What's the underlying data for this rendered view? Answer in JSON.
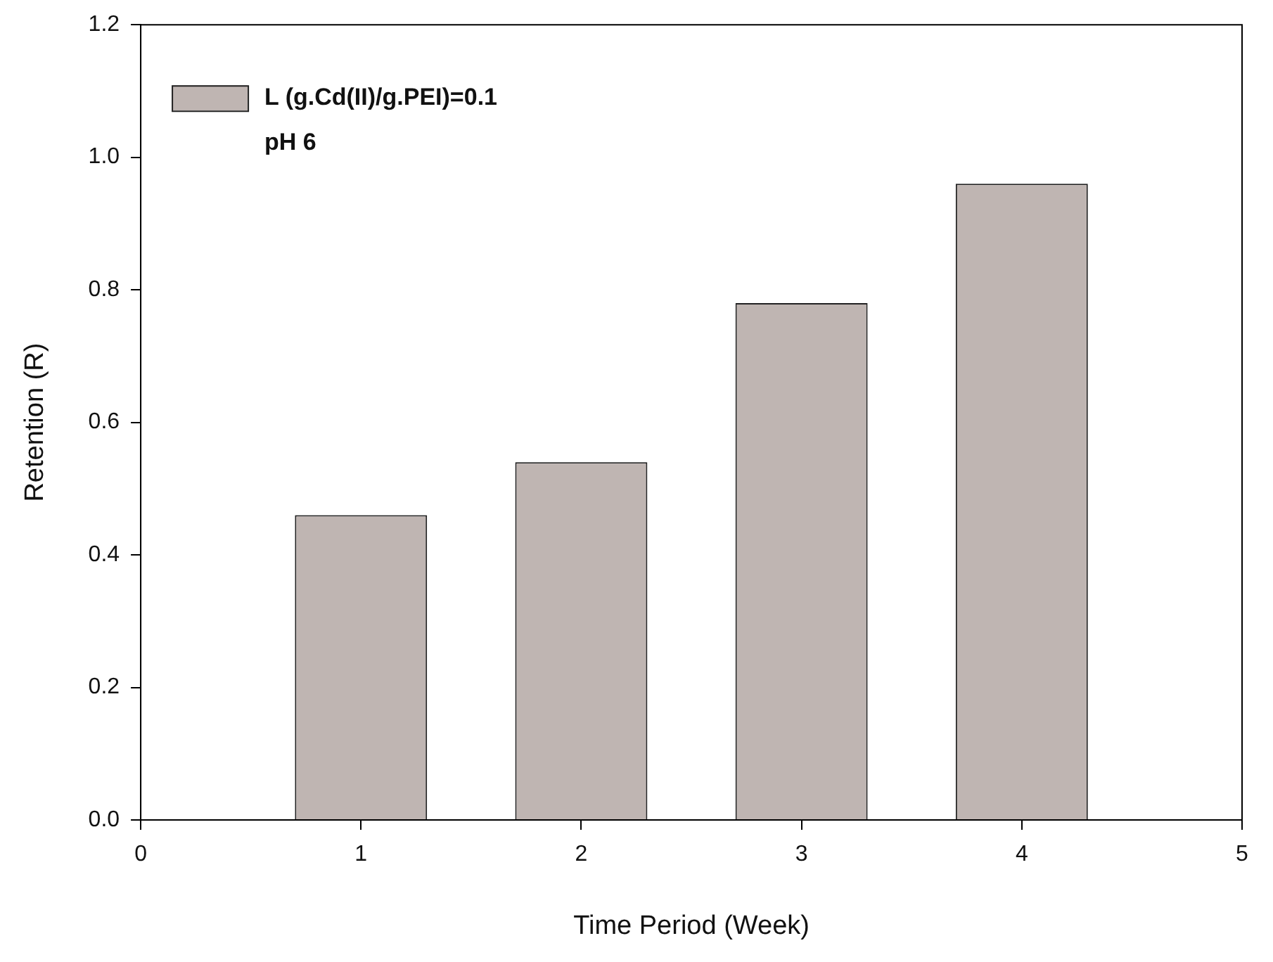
{
  "chart_data": {
    "type": "bar",
    "xlabel": "Time Period (Week)",
    "ylabel": "Retention (R)",
    "x": [
      1,
      2,
      3,
      4
    ],
    "series": [
      {
        "name": "L (g.Cd(II)/g.PEI)=0.1",
        "color": "#bfb5b2",
        "values": [
          0.46,
          0.54,
          0.78,
          0.96
        ]
      }
    ],
    "annotations": [
      "pH 6"
    ],
    "xlim": [
      0,
      5
    ],
    "xticks": [
      0,
      1,
      2,
      3,
      4,
      5
    ],
    "ylim": [
      0,
      1.2
    ],
    "yticks": [
      {
        "value": 0,
        "label": "0.0"
      },
      0.2,
      0.4,
      0.6,
      0.8,
      {
        "value": 1,
        "label": "1.0"
      },
      1.2
    ],
    "grid": false,
    "legend": "top left"
  }
}
